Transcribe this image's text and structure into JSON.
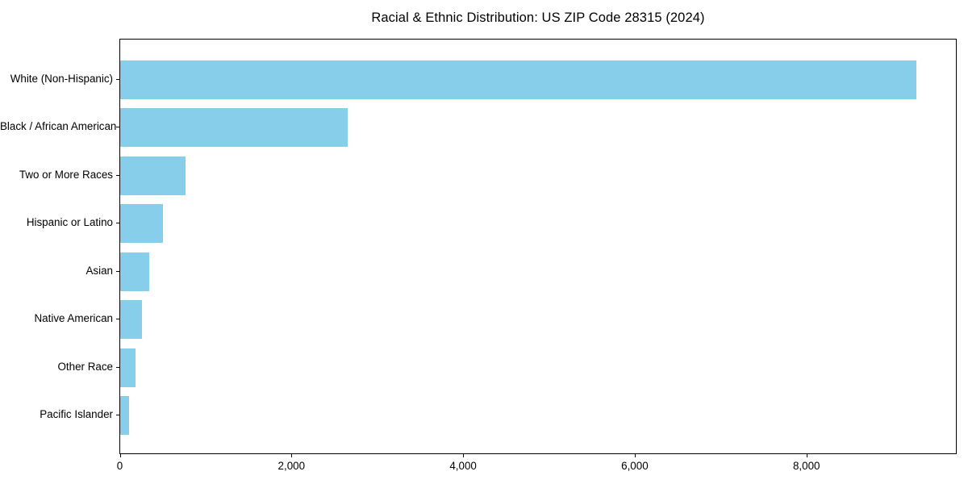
{
  "chart_data": {
    "type": "bar",
    "orientation": "horizontal",
    "title": "Racial & Ethnic Distribution: US ZIP Code 28315 (2024)",
    "categories": [
      "White (Non-Hispanic)",
      "Black / African American",
      "Two or More Races",
      "Hispanic or Latino",
      "Asian",
      "Native American",
      "Other Race",
      "Pacific Islander"
    ],
    "values": [
      9280,
      2650,
      760,
      495,
      340,
      255,
      175,
      100
    ],
    "xlabel": "",
    "ylabel": "",
    "xlim": [
      0,
      9746
    ],
    "xticks": [
      0,
      2000,
      4000,
      6000,
      8000
    ],
    "xtick_labels": [
      "0",
      "2,000",
      "4,000",
      "6,000",
      "8,000"
    ],
    "bar_color": "#87CEEB",
    "background_color": "#ffffff",
    "spine_color": "#000000",
    "grid": false,
    "legend": null,
    "value_order": "descending_top_to_bottom"
  }
}
